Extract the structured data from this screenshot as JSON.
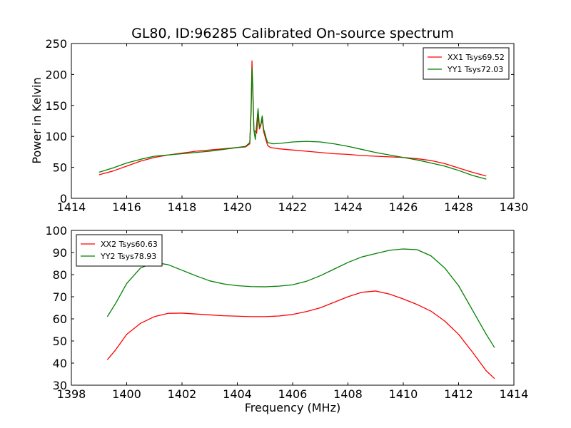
{
  "chart_data": [
    {
      "type": "line",
      "title": "GL80, ID:96285 Calibrated On-source spectrum",
      "xlabel": "",
      "ylabel": "Power in Kelvin",
      "xlim": [
        1414,
        1430
      ],
      "ylim": [
        0,
        250
      ],
      "xticks": [
        1414,
        1416,
        1418,
        1420,
        1422,
        1424,
        1426,
        1428,
        1430
      ],
      "yticks": [
        0,
        50,
        100,
        150,
        200,
        250
      ],
      "grid": false,
      "legend_position": "top-right",
      "series": [
        {
          "name": "XX1 Tsys69.52",
          "color": "#ff0000",
          "points": [
            [
              1415.0,
              38
            ],
            [
              1415.5,
              44
            ],
            [
              1416.0,
              52
            ],
            [
              1416.5,
              60
            ],
            [
              1417.0,
              66
            ],
            [
              1417.5,
              70
            ],
            [
              1418.0,
              73
            ],
            [
              1418.5,
              76
            ],
            [
              1419.0,
              78
            ],
            [
              1419.5,
              80
            ],
            [
              1420.0,
              82
            ],
            [
              1420.3,
              83
            ],
            [
              1420.45,
              88
            ],
            [
              1420.5,
              150
            ],
            [
              1420.53,
              222
            ],
            [
              1420.56,
              170
            ],
            [
              1420.6,
              110
            ],
            [
              1420.7,
              105
            ],
            [
              1420.75,
              135
            ],
            [
              1420.8,
              112
            ],
            [
              1420.85,
              118
            ],
            [
              1420.9,
              128
            ],
            [
              1420.95,
              108
            ],
            [
              1421.0,
              100
            ],
            [
              1421.05,
              92
            ],
            [
              1421.1,
              85
            ],
            [
              1421.2,
              82
            ],
            [
              1421.5,
              80
            ],
            [
              1422.0,
              78
            ],
            [
              1422.5,
              76
            ],
            [
              1423.0,
              74
            ],
            [
              1423.5,
              72
            ],
            [
              1424.0,
              71
            ],
            [
              1424.5,
              69
            ],
            [
              1425.0,
              68
            ],
            [
              1425.5,
              67
            ],
            [
              1426.0,
              66
            ],
            [
              1426.5,
              64
            ],
            [
              1427.0,
              61
            ],
            [
              1427.5,
              56
            ],
            [
              1428.0,
              49
            ],
            [
              1428.5,
              42
            ],
            [
              1429.0,
              36
            ]
          ]
        },
        {
          "name": "YY1 Tsys72.03",
          "color": "#008000",
          "points": [
            [
              1415.0,
              42
            ],
            [
              1415.5,
              49
            ],
            [
              1416.0,
              57
            ],
            [
              1416.5,
              63
            ],
            [
              1417.0,
              68
            ],
            [
              1417.5,
              70
            ],
            [
              1418.0,
              72
            ],
            [
              1418.5,
              74
            ],
            [
              1419.0,
              76
            ],
            [
              1419.5,
              79
            ],
            [
              1420.0,
              82
            ],
            [
              1420.3,
              84
            ],
            [
              1420.45,
              90
            ],
            [
              1420.5,
              140
            ],
            [
              1420.53,
              210
            ],
            [
              1420.56,
              180
            ],
            [
              1420.6,
              110
            ],
            [
              1420.65,
              95
            ],
            [
              1420.75,
              145
            ],
            [
              1420.8,
              115
            ],
            [
              1420.85,
              120
            ],
            [
              1420.9,
              133
            ],
            [
              1420.95,
              112
            ],
            [
              1421.0,
              105
            ],
            [
              1421.05,
              96
            ],
            [
              1421.1,
              90
            ],
            [
              1421.3,
              88
            ],
            [
              1421.6,
              89
            ],
            [
              1422.0,
              91
            ],
            [
              1422.5,
              92
            ],
            [
              1423.0,
              91
            ],
            [
              1423.5,
              88
            ],
            [
              1424.0,
              84
            ],
            [
              1424.5,
              79
            ],
            [
              1425.0,
              74
            ],
            [
              1425.5,
              70
            ],
            [
              1426.0,
              66
            ],
            [
              1426.5,
              62
            ],
            [
              1427.0,
              57
            ],
            [
              1427.5,
              52
            ],
            [
              1428.0,
              45
            ],
            [
              1428.5,
              37
            ],
            [
              1429.0,
              31
            ]
          ]
        }
      ]
    },
    {
      "type": "line",
      "title": "",
      "xlabel": "Frequency (MHz)",
      "ylabel": "",
      "xlim": [
        1398,
        1414
      ],
      "ylim": [
        30,
        100
      ],
      "xticks": [
        1398,
        1400,
        1402,
        1404,
        1406,
        1408,
        1410,
        1412,
        1414
      ],
      "yticks": [
        30,
        40,
        50,
        60,
        70,
        80,
        90,
        100
      ],
      "grid": false,
      "legend_position": "top-left",
      "series": [
        {
          "name": "XX2 Tsys60.63",
          "color": "#ff0000",
          "points": [
            [
              1399.3,
              41.5
            ],
            [
              1399.6,
              46
            ],
            [
              1400.0,
              53
            ],
            [
              1400.5,
              58
            ],
            [
              1401.0,
              61
            ],
            [
              1401.5,
              62.5
            ],
            [
              1402.0,
              62.6
            ],
            [
              1402.5,
              62.2
            ],
            [
              1403.0,
              61.8
            ],
            [
              1403.5,
              61.4
            ],
            [
              1404.0,
              61.2
            ],
            [
              1404.5,
              61.0
            ],
            [
              1405.0,
              61.0
            ],
            [
              1405.5,
              61.3
            ],
            [
              1406.0,
              62.0
            ],
            [
              1406.5,
              63.3
            ],
            [
              1407.0,
              65.0
            ],
            [
              1407.5,
              67.5
            ],
            [
              1408.0,
              70.0
            ],
            [
              1408.5,
              72.0
            ],
            [
              1409.0,
              72.6
            ],
            [
              1409.5,
              71.2
            ],
            [
              1410.0,
              69.0
            ],
            [
              1410.5,
              66.5
            ],
            [
              1411.0,
              63.5
            ],
            [
              1411.5,
              59.0
            ],
            [
              1412.0,
              53.0
            ],
            [
              1412.5,
              45.0
            ],
            [
              1413.0,
              36.5
            ],
            [
              1413.3,
              33.0
            ]
          ]
        },
        {
          "name": "YY2 Tsys78.93",
          "color": "#008000",
          "points": [
            [
              1399.3,
              61
            ],
            [
              1399.6,
              67
            ],
            [
              1400.0,
              76
            ],
            [
              1400.5,
              83
            ],
            [
              1401.0,
              85.5
            ],
            [
              1401.5,
              84.5
            ],
            [
              1402.0,
              82
            ],
            [
              1402.5,
              79.5
            ],
            [
              1403.0,
              77.2
            ],
            [
              1403.5,
              75.8
            ],
            [
              1404.0,
              75.0
            ],
            [
              1404.5,
              74.6
            ],
            [
              1405.0,
              74.5
            ],
            [
              1405.5,
              74.8
            ],
            [
              1406.0,
              75.4
            ],
            [
              1406.5,
              77.0
            ],
            [
              1407.0,
              79.5
            ],
            [
              1407.5,
              82.5
            ],
            [
              1408.0,
              85.5
            ],
            [
              1408.5,
              88.0
            ],
            [
              1409.0,
              89.5
            ],
            [
              1409.5,
              91.0
            ],
            [
              1410.0,
              91.6
            ],
            [
              1410.5,
              91.3
            ],
            [
              1411.0,
              88.5
            ],
            [
              1411.5,
              83.0
            ],
            [
              1412.0,
              75.0
            ],
            [
              1412.5,
              64.0
            ],
            [
              1413.0,
              53.0
            ],
            [
              1413.3,
              47.0
            ]
          ]
        }
      ]
    }
  ]
}
